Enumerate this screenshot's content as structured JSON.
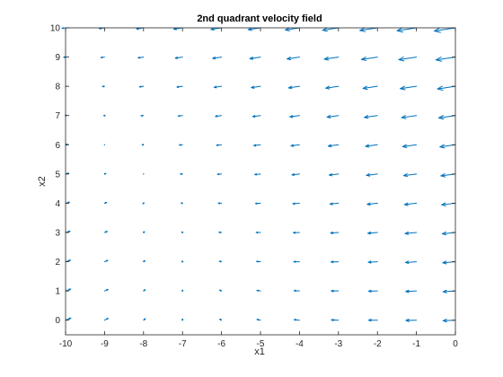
{
  "chart_data": {
    "type": "quiver",
    "title": "2nd quadrant velocity field",
    "xlabel": "x1",
    "ylabel": "x2",
    "xlim": [
      -10,
      0
    ],
    "ylim": [
      -0.5,
      10
    ],
    "xticks": [
      "-10",
      "-9",
      "-8",
      "-7",
      "-6",
      "-5",
      "-4",
      "-3",
      "-2",
      "-1",
      "0"
    ],
    "yticks": [
      "0",
      "1",
      "2",
      "3",
      "4",
      "5",
      "6",
      "7",
      "8",
      "9",
      "10"
    ],
    "grid": false,
    "box": true,
    "arrow_color": "#0072BD",
    "axes_color": "#262626",
    "x_points": [
      -10,
      -9,
      -8,
      -7,
      -6,
      -5,
      -4,
      -3,
      -2,
      -1,
      0
    ],
    "y_points": [
      0,
      1,
      2,
      3,
      4,
      5,
      6,
      7,
      8,
      9,
      10
    ],
    "field": {
      "u": "-(x1 + 7) - 0.05*x2^2",
      "v": "-0.2*(x1 + 7) - 0.2*(x2 - 5)",
      "scale": 0.045
    }
  }
}
